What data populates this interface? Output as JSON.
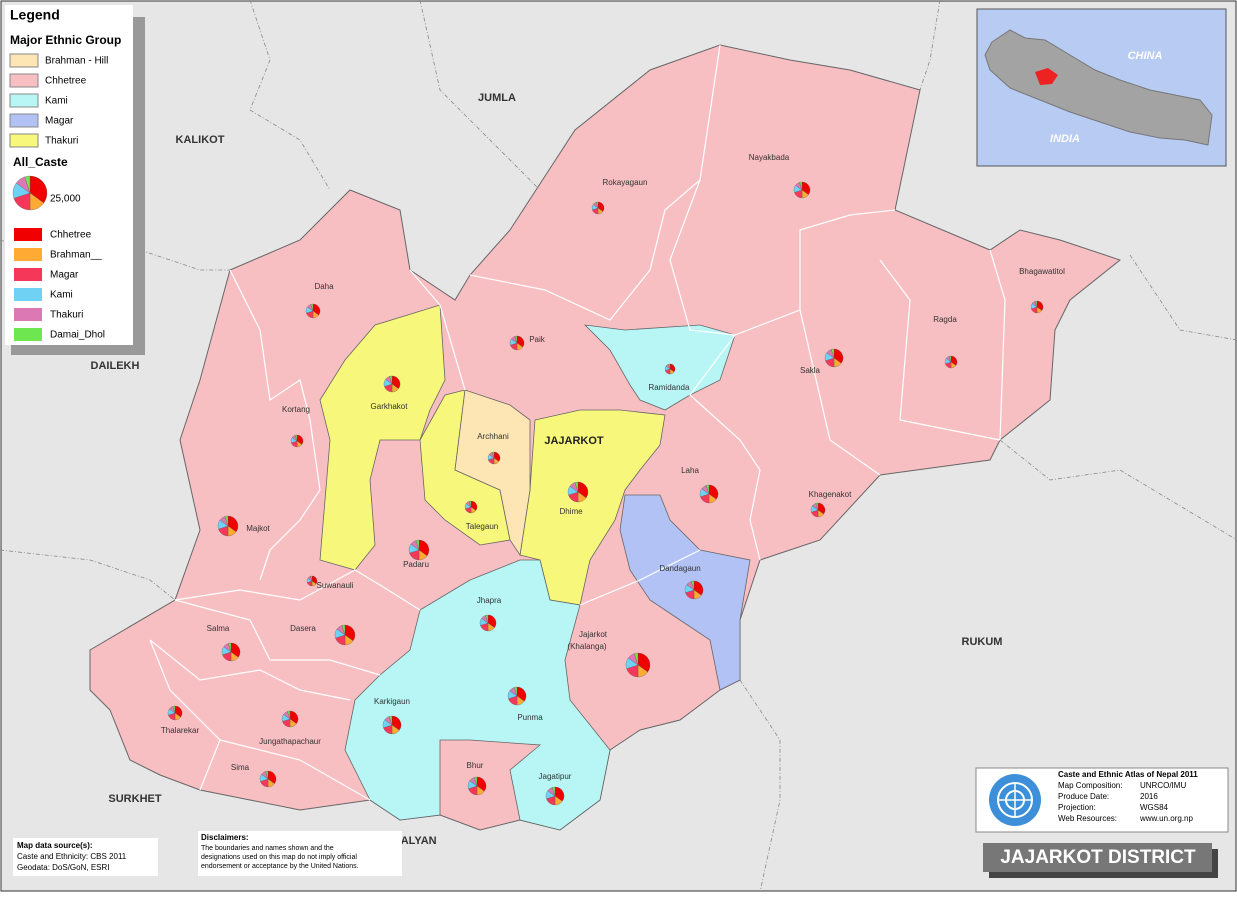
{
  "legend": {
    "title": "Legend",
    "major_group_title": "Major Ethnic Group",
    "major_groups": [
      {
        "label": "Brahman - Hill",
        "color": "#fde5b4"
      },
      {
        "label": "Chhetree",
        "color": "#f8bfc3"
      },
      {
        "label": "Kami",
        "color": "#b8f6f6"
      },
      {
        "label": "Magar",
        "color": "#b2c2f5"
      },
      {
        "label": "Thakuri",
        "color": "#f6f77b"
      }
    ],
    "caste_title": "All_Caste",
    "size_label": "25,000",
    "castes": [
      {
        "label": "Chhetree",
        "color": "#f00000"
      },
      {
        "label": "Brahman__",
        "color": "#ffaa33"
      },
      {
        "label": "Magar",
        "color": "#f5385a"
      },
      {
        "label": "Kami",
        "color": "#6fd2f5"
      },
      {
        "label": "Thakuri",
        "color": "#dc78b4"
      },
      {
        "label": "Damai_Dhol",
        "color": "#6ee650"
      }
    ]
  },
  "inset": {
    "labels": [
      "CHINA",
      "INDIA"
    ]
  },
  "district_label": "JAJARKOT",
  "neighbors": [
    "JUMLA",
    "KALIKOT",
    "DAILEKH",
    "RUKUM",
    "SURKHET",
    "SALYAN"
  ],
  "vdcs": [
    "Rokayagaun",
    "Nayakbada",
    "Daha",
    "Paik",
    "Ramidanda",
    "Sakla",
    "Ragda",
    "Bhagawatitol",
    "Garkhakot",
    "Kortang",
    "Archhani",
    "Laha",
    "Khagenakot",
    "Dhime",
    "Talegaun",
    "Majkot",
    "Padaru",
    "Suwanauli",
    "Dandagaun",
    "Jhapra",
    "Salma",
    "Dasera",
    "Jajarkot",
    "(Khalanga)",
    "Karkigaun",
    "Punma",
    "Thalarekar",
    "Jungathapachaur",
    "Bhur",
    "Jagatipur",
    "Sima"
  ],
  "info": {
    "title": "Caste and Ethnic Atlas of Nepal 2011",
    "rows": [
      [
        "Map Composition:",
        "UNRCO/IMU"
      ],
      [
        "Produce Date:",
        "2016"
      ],
      [
        "Projection:",
        "WGS84"
      ],
      [
        "Web Resources:",
        "www.un.org.np"
      ]
    ]
  },
  "title": "JAJARKOT DISTRICT",
  "sources": {
    "title": "Map data source(s):",
    "lines": [
      "Caste and Ethnicity: CBS 2011",
      "Geodata: DoS/GoN, ESRI"
    ]
  },
  "disclaimer": {
    "title": "Disclaimers:",
    "lines": [
      "The boundaries and names shown and the",
      "designations used on this map do not imply official",
      "endorsement or acceptance by the United Nations."
    ]
  }
}
